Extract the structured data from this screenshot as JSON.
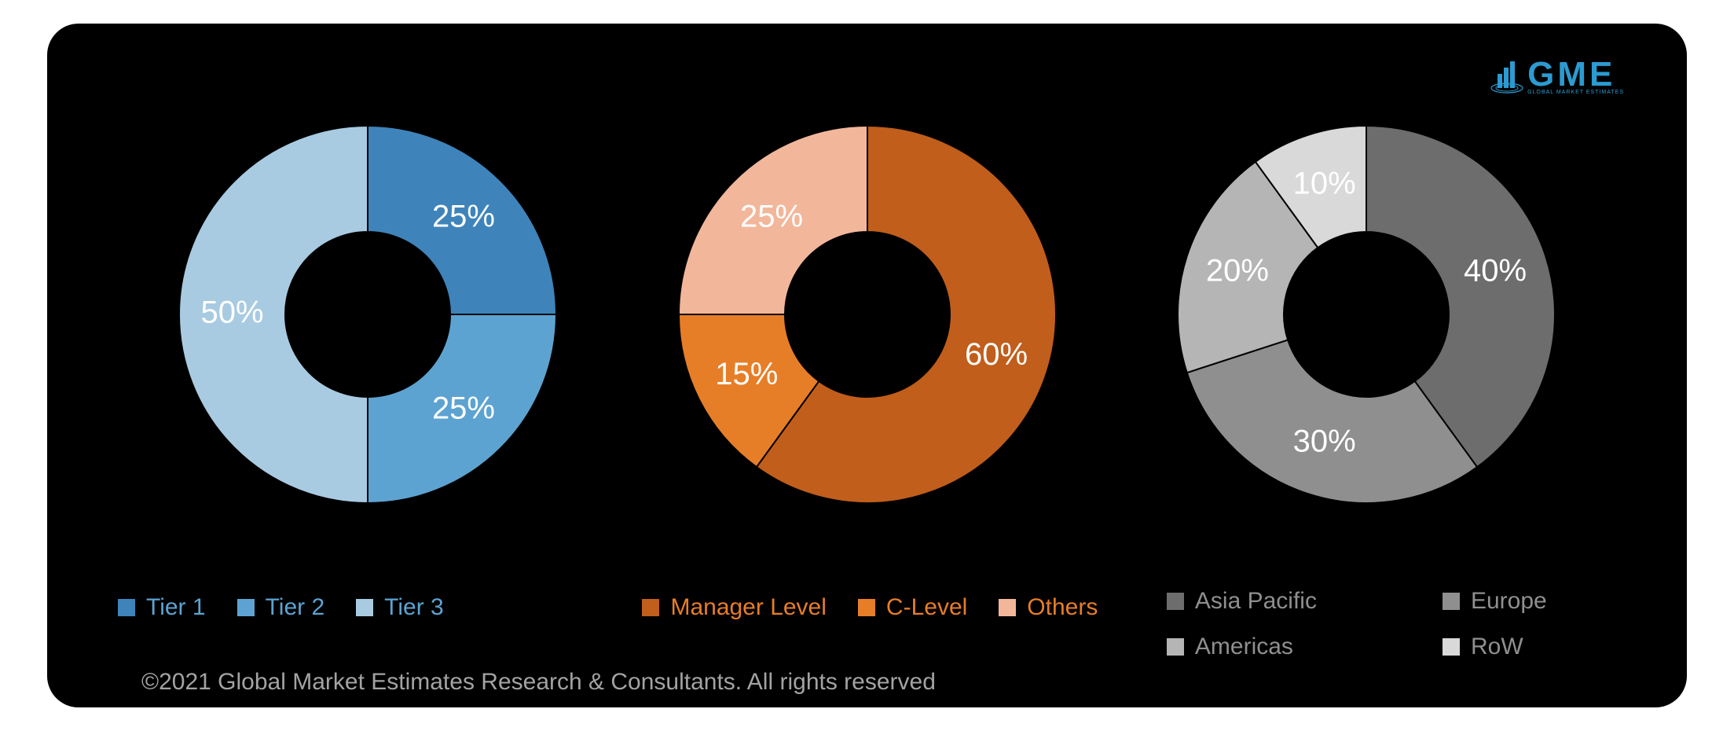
{
  "background_color": "#000000",
  "logo": {
    "text": "GME",
    "subtitle": "GLOBAL MARKET ESTIMATES",
    "color": "#2b9bd1"
  },
  "charts": [
    {
      "type": "donut",
      "outer_radius": 240,
      "inner_radius": 105,
      "label_fontsize": 40,
      "label_color": "#ffffff",
      "slices": [
        {
          "label": "Tier 1",
          "value": 25,
          "color": "#3e84ba",
          "show_label": "25%"
        },
        {
          "label": "Tier 2",
          "value": 25,
          "color": "#5da3d1",
          "show_label": "25%"
        },
        {
          "label": "Tier 3",
          "value": 50,
          "color": "#a8cbe2",
          "show_label": "50%"
        }
      ],
      "legend_color": "#5da3d1"
    },
    {
      "type": "donut",
      "outer_radius": 240,
      "inner_radius": 105,
      "label_fontsize": 40,
      "label_color": "#ffffff",
      "slices": [
        {
          "label": "Manager Level",
          "value": 60,
          "color": "#c15e1b",
          "show_label": "60%"
        },
        {
          "label": "C-Level",
          "value": 15,
          "color": "#e67e28",
          "show_label": "15%"
        },
        {
          "label": "Others",
          "value": 25,
          "color": "#f2b79a",
          "show_label": "25%"
        }
      ],
      "legend_color": "#e67e28"
    },
    {
      "type": "donut",
      "outer_radius": 240,
      "inner_radius": 105,
      "label_fontsize": 40,
      "label_color": "#ffffff",
      "slices": [
        {
          "label": "Asia Pacific",
          "value": 40,
          "color": "#6d6d6d",
          "show_label": "40%"
        },
        {
          "label": "Europe",
          "value": 30,
          "color": "#8f8f8f",
          "show_label": "30%"
        },
        {
          "label": "Americas",
          "value": 20,
          "color": "#b5b5b5",
          "show_label": "20%"
        },
        {
          "label": "RoW",
          "value": 10,
          "color": "#d9d9d9",
          "show_label": "10%"
        }
      ],
      "legend_color": "#8f8f8f"
    }
  ],
  "copyright": "©2021 Global Market Estimates Research & Consultants. All rights reserved"
}
